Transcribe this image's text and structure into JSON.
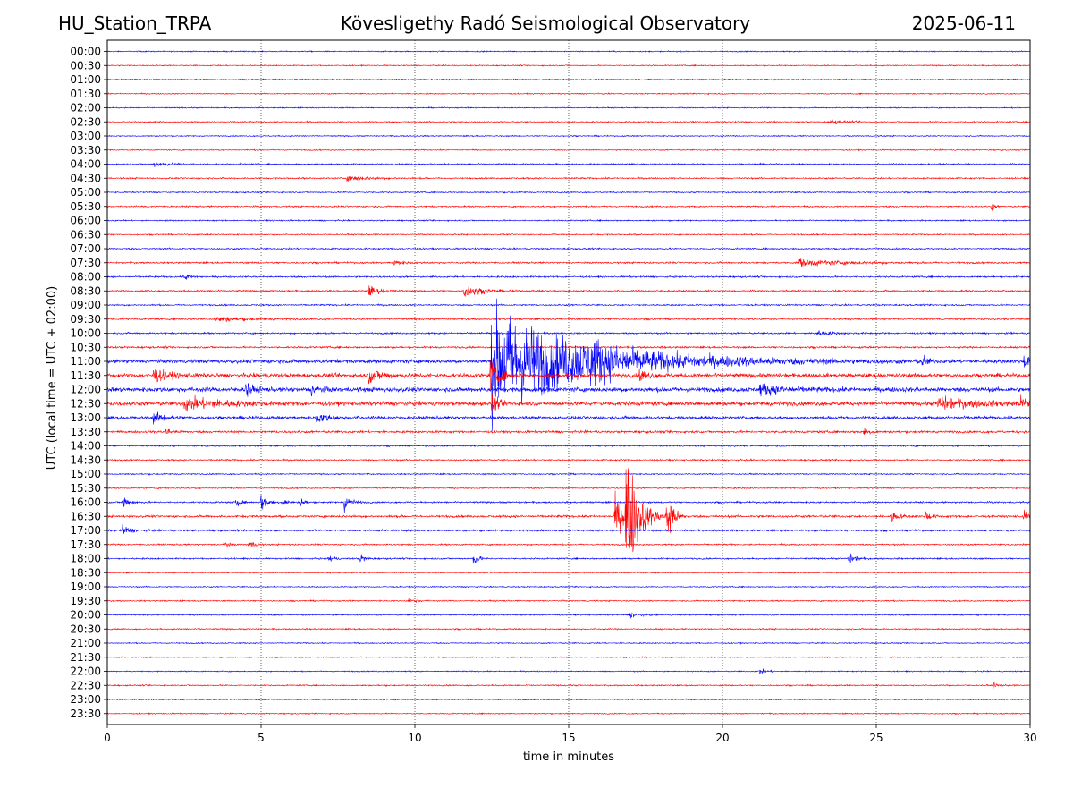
{
  "header": {
    "station": "HU_Station_TRPA",
    "observatory": "Kövesligethy Radó Seismological Observatory",
    "date": "2025-06-11"
  },
  "chart_data": {
    "type": "line",
    "title": "Kövesligethy Radó Seismological Observatory",
    "xlabel": "time in minutes",
    "ylabel": "UTC (local time = UTC + 02:00)",
    "xlim": [
      0,
      30
    ],
    "xticks": [
      0,
      5,
      10,
      15,
      20,
      25,
      30
    ],
    "grid": "vertical dotted at x ticks",
    "colors": {
      "even": "#0000ff",
      "odd": "#ff0000"
    },
    "rows": [
      "00:00",
      "00:30",
      "01:00",
      "01:30",
      "02:00",
      "02:30",
      "03:00",
      "03:30",
      "04:00",
      "04:30",
      "05:00",
      "05:30",
      "06:00",
      "06:30",
      "07:00",
      "07:30",
      "08:00",
      "08:30",
      "09:00",
      "09:30",
      "10:00",
      "10:30",
      "11:00",
      "11:30",
      "12:00",
      "12:30",
      "13:00",
      "13:30",
      "14:00",
      "14:30",
      "15:00",
      "15:30",
      "16:00",
      "16:30",
      "17:00",
      "17:30",
      "18:00",
      "18:30",
      "19:00",
      "19:30",
      "20:00",
      "20:30",
      "21:00",
      "21:30",
      "22:00",
      "22:30",
      "23:00",
      "23:30"
    ],
    "noise": [
      0.6,
      0.6,
      0.6,
      0.6,
      0.6,
      0.7,
      0.6,
      0.6,
      0.8,
      0.8,
      0.7,
      0.8,
      0.7,
      0.7,
      0.8,
      0.9,
      0.9,
      0.9,
      0.8,
      0.9,
      0.9,
      1.0,
      2.0,
      2.2,
      2.4,
      2.2,
      1.6,
      1.2,
      0.8,
      0.8,
      0.7,
      0.7,
      0.9,
      1.2,
      1.0,
      0.8,
      0.8,
      0.6,
      0.6,
      0.7,
      0.7,
      0.7,
      0.6,
      0.6,
      0.6,
      0.7,
      0.6,
      0.6
    ],
    "events": [
      {
        "row": 5,
        "t": 23.5,
        "amp": 3,
        "dur": 0.5
      },
      {
        "row": 8,
        "t": 1.5,
        "amp": 3,
        "dur": 0.6
      },
      {
        "row": 9,
        "t": 7.8,
        "amp": 3,
        "dur": 0.8
      },
      {
        "row": 11,
        "t": 28.75,
        "amp": 6,
        "dur": 0.1
      },
      {
        "row": 15,
        "t": 9.3,
        "amp": 3,
        "dur": 0.4
      },
      {
        "row": 15,
        "t": 22.5,
        "amp": 4,
        "dur": 1.8
      },
      {
        "row": 16,
        "t": 2.5,
        "amp": 4,
        "dur": 0.3
      },
      {
        "row": 17,
        "t": 8.5,
        "amp": 6,
        "dur": 0.4
      },
      {
        "row": 17,
        "t": 11.6,
        "amp": 9,
        "dur": 0.6
      },
      {
        "row": 19,
        "t": 3.5,
        "amp": 3,
        "dur": 1.2
      },
      {
        "row": 20,
        "t": 23.0,
        "amp": 3,
        "dur": 0.6
      },
      {
        "row": 22,
        "t": 12.5,
        "amp": 60,
        "dur": 4.0
      },
      {
        "row": 22,
        "t": 15.7,
        "amp": 12,
        "dur": 0.6
      },
      {
        "row": 22,
        "t": 26.5,
        "amp": 8,
        "dur": 0.2
      },
      {
        "row": 22,
        "t": 29.8,
        "amp": 8,
        "dur": 0.2
      },
      {
        "row": 23,
        "t": 1.5,
        "amp": 7,
        "dur": 0.6
      },
      {
        "row": 23,
        "t": 8.5,
        "amp": 8,
        "dur": 0.6
      },
      {
        "row": 23,
        "t": 12.45,
        "amp": 18,
        "dur": 0.4
      },
      {
        "row": 23,
        "t": 17.3,
        "amp": 8,
        "dur": 0.3
      },
      {
        "row": 24,
        "t": 4.5,
        "amp": 12,
        "dur": 0.2
      },
      {
        "row": 24,
        "t": 6.6,
        "amp": 7,
        "dur": 0.3
      },
      {
        "row": 24,
        "t": 21.2,
        "amp": 6,
        "dur": 1.0
      },
      {
        "row": 25,
        "t": 2.5,
        "amp": 7,
        "dur": 1.6
      },
      {
        "row": 25,
        "t": 12.5,
        "amp": 14,
        "dur": 0.2
      },
      {
        "row": 25,
        "t": 27.0,
        "amp": 7,
        "dur": 1.5
      },
      {
        "row": 25,
        "t": 29.7,
        "amp": 9,
        "dur": 0.2
      },
      {
        "row": 26,
        "t": 1.5,
        "amp": 6,
        "dur": 0.5
      },
      {
        "row": 26,
        "t": 6.8,
        "amp": 6,
        "dur": 0.5
      },
      {
        "row": 27,
        "t": 1.9,
        "amp": 5,
        "dur": 0.2
      },
      {
        "row": 27,
        "t": 24.6,
        "amp": 5,
        "dur": 0.2
      },
      {
        "row": 32,
        "t": 0.5,
        "amp": 10,
        "dur": 0.25
      },
      {
        "row": 32,
        "t": 4.2,
        "amp": 7,
        "dur": 0.15
      },
      {
        "row": 32,
        "t": 5.0,
        "amp": 10,
        "dur": 0.25
      },
      {
        "row": 32,
        "t": 5.7,
        "amp": 7,
        "dur": 0.15
      },
      {
        "row": 32,
        "t": 6.3,
        "amp": 6,
        "dur": 0.15
      },
      {
        "row": 32,
        "t": 7.7,
        "amp": 10,
        "dur": 0.25
      },
      {
        "row": 33,
        "t": 16.5,
        "amp": 20,
        "dur": 0.6
      },
      {
        "row": 33,
        "t": 16.85,
        "amp": 75,
        "dur": 0.5
      },
      {
        "row": 33,
        "t": 18.2,
        "amp": 45,
        "dur": 0.2
      },
      {
        "row": 33,
        "t": 25.5,
        "amp": 8,
        "dur": 0.25
      },
      {
        "row": 33,
        "t": 26.6,
        "amp": 7,
        "dur": 0.2
      },
      {
        "row": 33,
        "t": 29.8,
        "amp": 6,
        "dur": 0.2
      },
      {
        "row": 34,
        "t": 0.5,
        "amp": 6,
        "dur": 0.3
      },
      {
        "row": 35,
        "t": 3.8,
        "amp": 6,
        "dur": 0.15
      },
      {
        "row": 35,
        "t": 4.6,
        "amp": 6,
        "dur": 0.2
      },
      {
        "row": 36,
        "t": 7.2,
        "amp": 5,
        "dur": 0.2
      },
      {
        "row": 36,
        "t": 8.2,
        "amp": 6,
        "dur": 0.2
      },
      {
        "row": 36,
        "t": 11.9,
        "amp": 8,
        "dur": 0.2
      },
      {
        "row": 36,
        "t": 24.1,
        "amp": 6,
        "dur": 0.3
      },
      {
        "row": 39,
        "t": 9.8,
        "amp": 3,
        "dur": 0.3
      },
      {
        "row": 40,
        "t": 17.0,
        "amp": 3,
        "dur": 0.4
      },
      {
        "row": 44,
        "t": 21.2,
        "amp": 3,
        "dur": 0.3
      },
      {
        "row": 45,
        "t": 28.8,
        "amp": 3,
        "dur": 0.2
      }
    ]
  }
}
